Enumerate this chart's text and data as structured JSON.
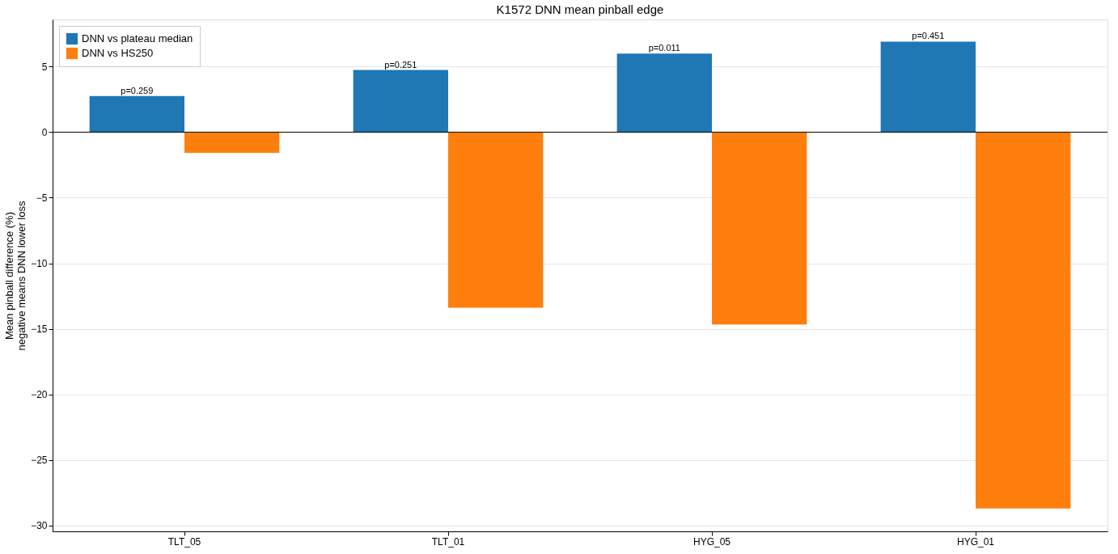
{
  "chart_data": {
    "type": "bar",
    "title": "K1572 DNN mean pinball edge",
    "ylabel": "Mean pinball difference (%)\nnegative means DNN lower loss",
    "categories": [
      "TLT_05",
      "TLT_01",
      "HYG_05",
      "HYG_01"
    ],
    "series": [
      {
        "name": "DNN vs plateau median",
        "color": "#1f77b4",
        "values": [
          2.76,
          4.74,
          5.99,
          6.91
        ]
      },
      {
        "name": "DNN vs HS250",
        "color": "#ff7f0e",
        "values": [
          -1.58,
          -13.4,
          -14.67,
          -28.7
        ]
      }
    ],
    "ylim": [
      -30.45,
      8.6
    ],
    "yticks": [
      -30,
      -25,
      -20,
      -15,
      -10,
      -5,
      0,
      5
    ],
    "grid": "y",
    "legend": "top left",
    "ref_lines": [
      {
        "axis": "y",
        "value": 0,
        "color": "#000000"
      }
    ],
    "annotations": [
      "p=0.259",
      "p=0.251",
      "p=0.011",
      "p=0.451"
    ]
  }
}
